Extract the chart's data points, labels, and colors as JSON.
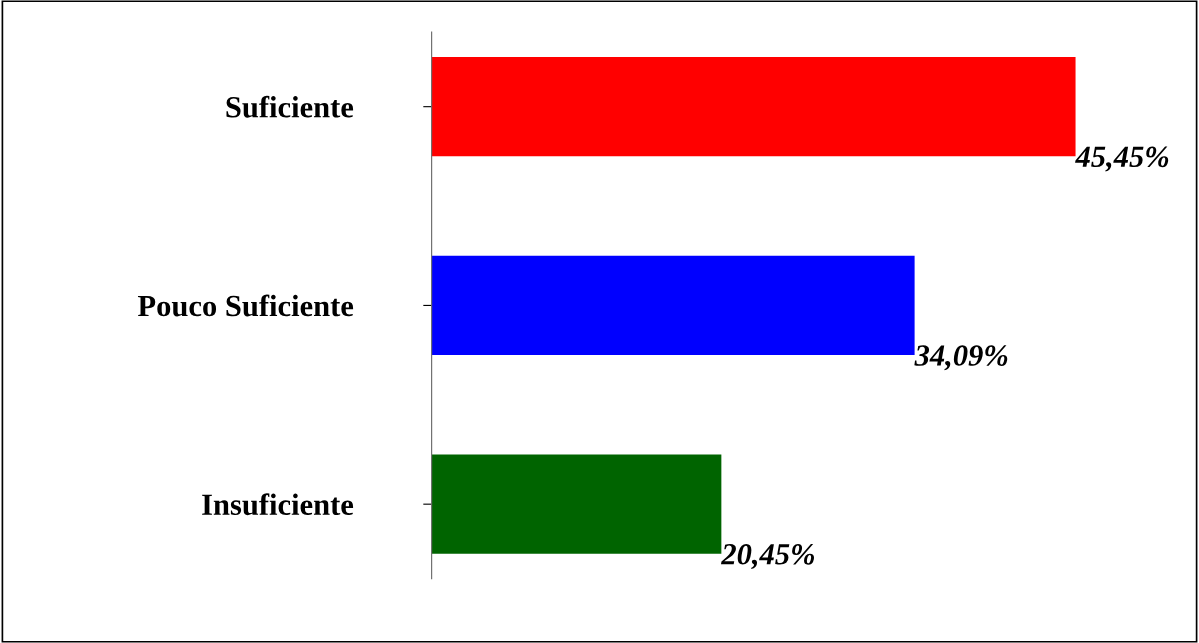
{
  "chart_data": {
    "type": "bar",
    "orientation": "horizontal",
    "categories": [
      "Suficiente",
      "Pouco Suficiente",
      "Insuficiente"
    ],
    "values": [
      45.45,
      34.09,
      20.45
    ],
    "colors": [
      "#ff0000",
      "#0000ff",
      "#006400"
    ],
    "value_labels": [
      "45,45%",
      "34,09%",
      "20,45%"
    ],
    "grid": false,
    "legend": false
  }
}
